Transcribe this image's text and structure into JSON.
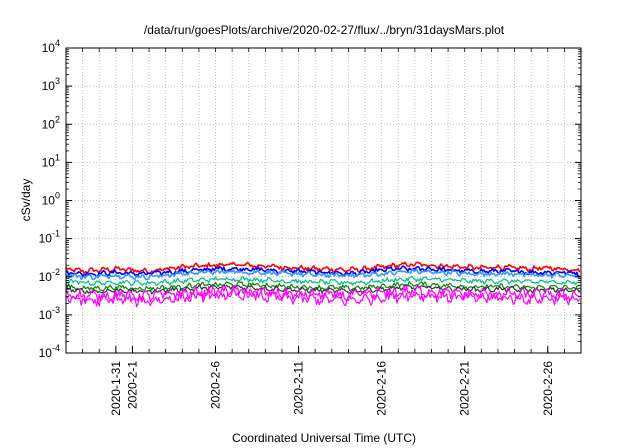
{
  "chart_data": {
    "type": "line",
    "title": "/data/run/goesPlots/archive/2020-02-27/flux/../bryn/31daysMars.plot",
    "xlabel": "Coordinated Universal Time (UTC)",
    "ylabel": "cSv/day",
    "y_scale": "log",
    "ylim": [
      0.0001,
      10000
    ],
    "xlim": [
      "2020-01-28T00:00",
      "2020-02-28T00:00"
    ],
    "grid": true,
    "legend": "none",
    "y_ticks": [
      {
        "value": 0.0001,
        "base": "10",
        "exp": "-4"
      },
      {
        "value": 0.001,
        "base": "10",
        "exp": "-3"
      },
      {
        "value": 0.01,
        "base": "10",
        "exp": "-2"
      },
      {
        "value": 0.1,
        "base": "10",
        "exp": "-1"
      },
      {
        "value": 1,
        "base": "10",
        "exp": "0"
      },
      {
        "value": 10,
        "base": "10",
        "exp": "1"
      },
      {
        "value": 100,
        "base": "10",
        "exp": "2"
      },
      {
        "value": 1000,
        "base": "10",
        "exp": "3"
      },
      {
        "value": 10000,
        "base": "10",
        "exp": "4"
      }
    ],
    "x_ticks": [
      {
        "date": "2020-01-31",
        "label": "2020-1-31"
      },
      {
        "date": "2020-02-01",
        "label": "2020-2-1"
      },
      {
        "date": "2020-02-06",
        "label": "2020-2-6"
      },
      {
        "date": "2020-02-11",
        "label": "2020-2-11"
      },
      {
        "date": "2020-02-16",
        "label": "2020-2-16"
      },
      {
        "date": "2020-02-21",
        "label": "2020-2-21"
      },
      {
        "date": "2020-02-26",
        "label": "2020-2-26"
      }
    ],
    "x_grid_dates": [
      "2020-01-29",
      "2020-01-30",
      "2020-01-31",
      "2020-02-01",
      "2020-02-02",
      "2020-02-03",
      "2020-02-04",
      "2020-02-05",
      "2020-02-06",
      "2020-02-07",
      "2020-02-08",
      "2020-02-09",
      "2020-02-10",
      "2020-02-11",
      "2020-02-12",
      "2020-02-13",
      "2020-02-14",
      "2020-02-15",
      "2020-02-16",
      "2020-02-17",
      "2020-02-18",
      "2020-02-19",
      "2020-02-20",
      "2020-02-21",
      "2020-02-22",
      "2020-02-23",
      "2020-02-24",
      "2020-02-25",
      "2020-02-26",
      "2020-02-27"
    ],
    "series_x": [
      "2020-01-28",
      "2020-01-29",
      "2020-01-30",
      "2020-01-31",
      "2020-02-01",
      "2020-02-02",
      "2020-02-03",
      "2020-02-04",
      "2020-02-05",
      "2020-02-06",
      "2020-02-07",
      "2020-02-08",
      "2020-02-09",
      "2020-02-10",
      "2020-02-11",
      "2020-02-12",
      "2020-02-13",
      "2020-02-14",
      "2020-02-15",
      "2020-02-16",
      "2020-02-17",
      "2020-02-18",
      "2020-02-19",
      "2020-02-20",
      "2020-02-21",
      "2020-02-22",
      "2020-02-23",
      "2020-02-24",
      "2020-02-25",
      "2020-02-26",
      "2020-02-27",
      "2020-02-28"
    ],
    "series": [
      {
        "color": "#ff0000",
        "values": [
          0.016,
          0.014,
          0.015,
          0.016,
          0.015,
          0.014,
          0.016,
          0.018,
          0.019,
          0.02,
          0.021,
          0.02,
          0.019,
          0.018,
          0.017,
          0.016,
          0.016,
          0.015,
          0.016,
          0.018,
          0.02,
          0.021,
          0.02,
          0.019,
          0.018,
          0.017,
          0.018,
          0.017,
          0.016,
          0.017,
          0.016,
          0.015
        ]
      },
      {
        "color": "#0000ff",
        "values": [
          0.013,
          0.012,
          0.012,
          0.013,
          0.012,
          0.012,
          0.013,
          0.014,
          0.015,
          0.016,
          0.016,
          0.016,
          0.015,
          0.014,
          0.014,
          0.013,
          0.013,
          0.012,
          0.013,
          0.015,
          0.016,
          0.016,
          0.016,
          0.015,
          0.014,
          0.014,
          0.014,
          0.014,
          0.013,
          0.013,
          0.013,
          0.012
        ]
      },
      {
        "color": "#3399ff",
        "values": [
          0.011,
          0.01,
          0.01,
          0.011,
          0.01,
          0.01,
          0.011,
          0.012,
          0.013,
          0.013,
          0.014,
          0.013,
          0.013,
          0.012,
          0.012,
          0.011,
          0.011,
          0.011,
          0.011,
          0.012,
          0.013,
          0.014,
          0.013,
          0.013,
          0.012,
          0.012,
          0.012,
          0.012,
          0.011,
          0.011,
          0.011,
          0.01
        ]
      },
      {
        "color": "#00bb88",
        "values": [
          0.0075,
          0.007,
          0.0068,
          0.0072,
          0.007,
          0.0068,
          0.0072,
          0.0078,
          0.0082,
          0.0085,
          0.0088,
          0.0086,
          0.0082,
          0.0078,
          0.0075,
          0.0072,
          0.0072,
          0.007,
          0.0072,
          0.0078,
          0.0084,
          0.0088,
          0.0086,
          0.0082,
          0.0078,
          0.0076,
          0.0078,
          0.0076,
          0.0073,
          0.0074,
          0.0072,
          0.007
        ]
      },
      {
        "color": "#008800",
        "values": [
          0.0055,
          0.005,
          0.005,
          0.0053,
          0.005,
          0.0049,
          0.0052,
          0.0056,
          0.006,
          0.0062,
          0.0064,
          0.0062,
          0.006,
          0.0056,
          0.0054,
          0.0052,
          0.0052,
          0.005,
          0.0052,
          0.0056,
          0.0061,
          0.0064,
          0.0062,
          0.0059,
          0.0056,
          0.0054,
          0.0056,
          0.0054,
          0.0052,
          0.0053,
          0.0052,
          0.005
        ]
      },
      {
        "color": "#333333",
        "values": [
          0.0046,
          0.0042,
          0.0041,
          0.0044,
          0.0042,
          0.0041,
          0.0044,
          0.0047,
          0.005,
          0.0052,
          0.0054,
          0.0052,
          0.005,
          0.0047,
          0.0045,
          0.0044,
          0.0043,
          0.0042,
          0.0044,
          0.0047,
          0.0051,
          0.0053,
          0.0052,
          0.0049,
          0.0047,
          0.0046,
          0.0047,
          0.0046,
          0.0044,
          0.0045,
          0.0044,
          0.0042
        ]
      },
      {
        "color": "#ff00ff",
        "values": [
          0.0036,
          0.0032,
          0.0031,
          0.0034,
          0.0032,
          0.0031,
          0.0034,
          0.0036,
          0.0039,
          0.0041,
          0.0042,
          0.0041,
          0.0039,
          0.0036,
          0.0035,
          0.0034,
          0.0033,
          0.0032,
          0.0034,
          0.0037,
          0.004,
          0.0042,
          0.0041,
          0.0038,
          0.0036,
          0.0035,
          0.0036,
          0.0035,
          0.0034,
          0.0035,
          0.0034,
          0.0032
        ]
      },
      {
        "color": "#ff00ff",
        "values": [
          0.0028,
          0.0024,
          0.0023,
          0.0026,
          0.0024,
          0.0023,
          0.0026,
          0.0028,
          0.003,
          0.0032,
          0.0033,
          0.0032,
          0.003,
          0.0028,
          0.0027,
          0.0026,
          0.0025,
          0.0024,
          0.0026,
          0.0029,
          0.0031,
          0.0033,
          0.0032,
          0.0029,
          0.0028,
          0.0027,
          0.0028,
          0.0027,
          0.0026,
          0.0027,
          0.0026,
          0.0024
        ]
      }
    ]
  }
}
